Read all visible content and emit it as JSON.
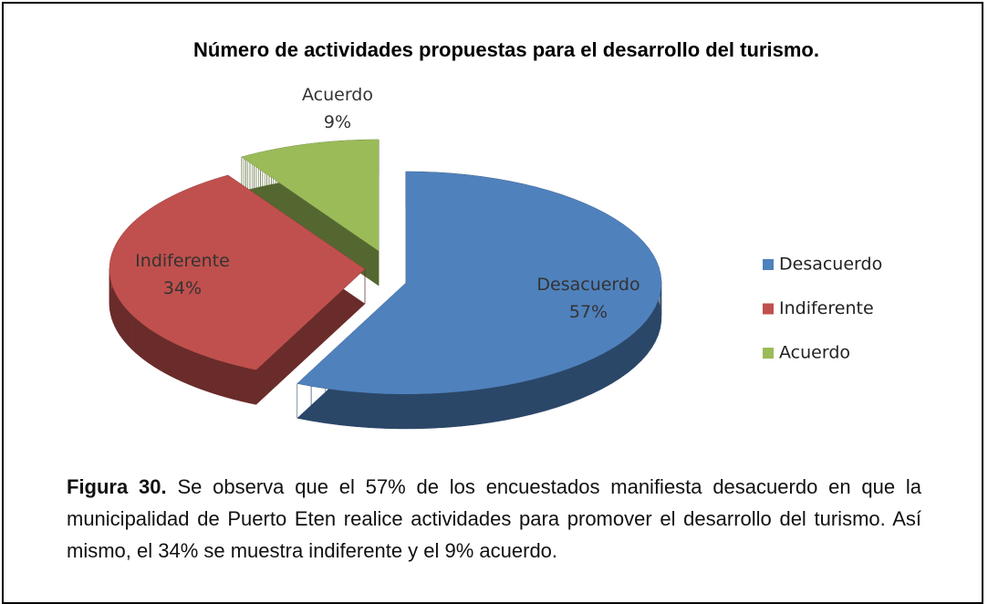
{
  "chart_data": {
    "type": "pie",
    "title": "Número de actividades propuestas para el desarrollo del turismo.",
    "categories": [
      "Desacuerdo",
      "Indiferente",
      "Acuerdo"
    ],
    "values": [
      57,
      34,
      9
    ],
    "value_labels": [
      "57%",
      "34%",
      "9%"
    ],
    "colors": [
      "#4f81bd",
      "#c0504d",
      "#9bbb59"
    ],
    "legend": "right"
  },
  "caption": {
    "label": "Figura 30.",
    "text": "Se observa que el 57% de los encuestados manifiesta desacuerdo en que la municipalidad de Puerto Eten realice actividades para promover el desarrollo del turismo. Así mismo, el 34% se muestra indiferente y el 9% acuerdo."
  }
}
